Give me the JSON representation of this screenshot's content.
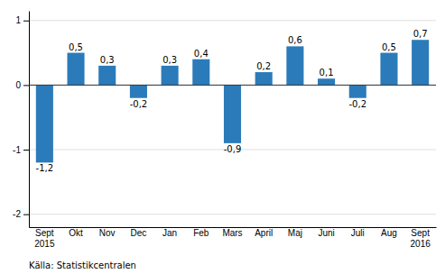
{
  "chart_data": {
    "type": "bar",
    "categories": [
      "Sept\n2015",
      "Okt",
      "Nov",
      "Dec",
      "Jan",
      "Feb",
      "Mars",
      "April",
      "Maj",
      "Juni",
      "Juli",
      "Aug",
      "Sept\n2016"
    ],
    "values": [
      -1.2,
      0.5,
      0.3,
      -0.2,
      0.3,
      0.4,
      -0.9,
      0.2,
      0.6,
      0.1,
      -0.2,
      0.5,
      0.7
    ],
    "value_labels": [
      "-1,2",
      "0,5",
      "0,3",
      "-0,2",
      "0,3",
      "0,4",
      "-0,9",
      "0,2",
      "0,6",
      "0,1",
      "-0,2",
      "0,5",
      "0,7"
    ],
    "data_labels": true,
    "color": "#2b7bba",
    "ylim": [
      -2.2,
      1.15
    ],
    "yticks": [
      -2,
      -1,
      0,
      1
    ],
    "grid": true,
    "annotations": [
      "Källa: Statistikcentralen"
    ]
  }
}
